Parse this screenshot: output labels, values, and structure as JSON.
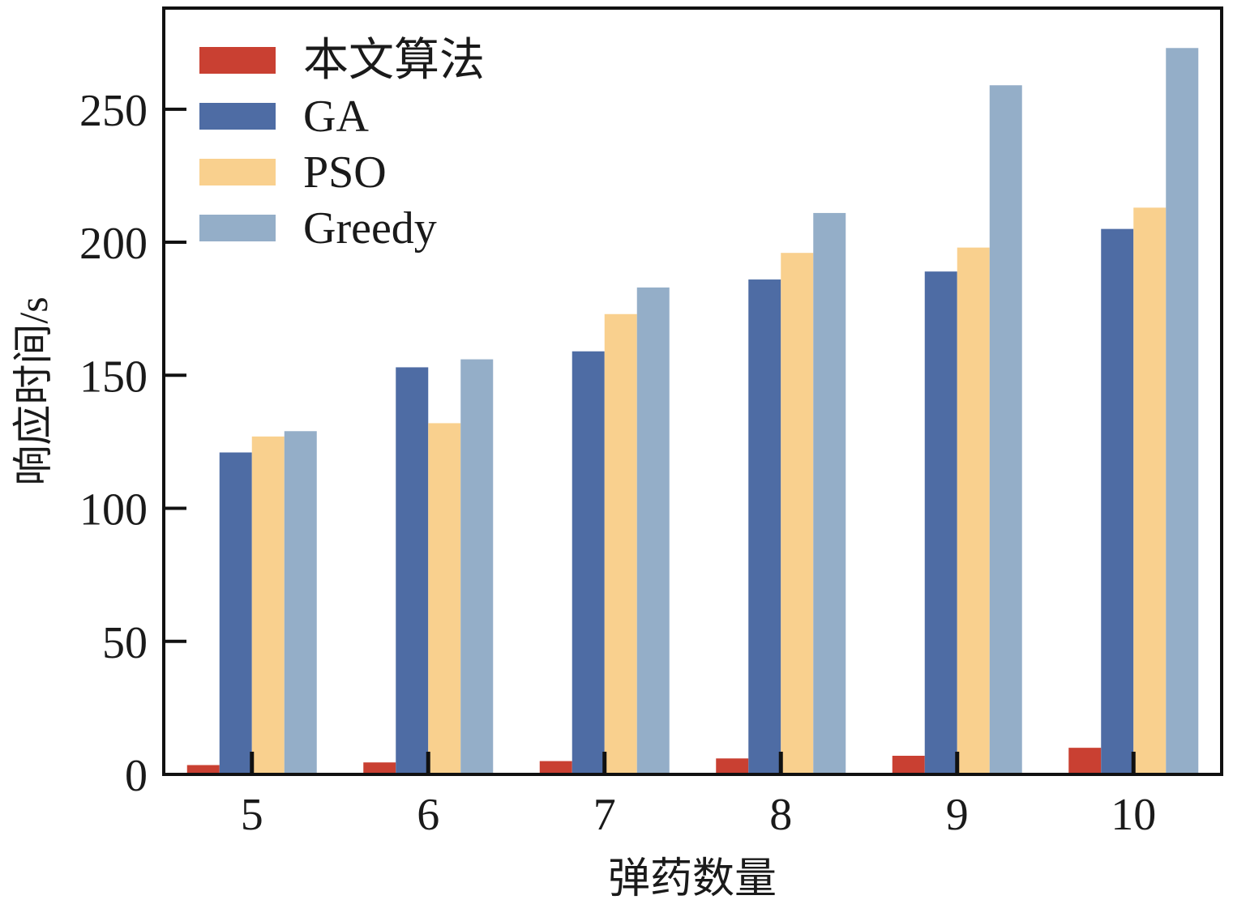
{
  "chart_data": {
    "type": "bar",
    "categories": [
      "5",
      "6",
      "7",
      "8",
      "9",
      "10"
    ],
    "xlabel": "弹药数量",
    "ylabel": "响应时间/s",
    "ylim": [
      0,
      288
    ],
    "yticks": [
      "0",
      "50",
      "100",
      "150",
      "200",
      "250"
    ],
    "grid": false,
    "legend_position": "top-left",
    "series": [
      {
        "name": "本文算法",
        "color": "#c94032",
        "values": [
          3.5,
          4.5,
          5,
          6,
          7,
          10
        ]
      },
      {
        "name": "GA",
        "color": "#4e6ca4",
        "values": [
          121,
          153,
          159,
          186,
          189,
          205
        ]
      },
      {
        "name": "PSO",
        "color": "#f9d08e",
        "values": [
          127,
          132,
          173,
          196,
          198,
          213
        ]
      },
      {
        "name": "Greedy",
        "color": "#94aec8",
        "values": [
          129,
          156,
          183,
          211,
          259,
          273
        ]
      }
    ]
  }
}
